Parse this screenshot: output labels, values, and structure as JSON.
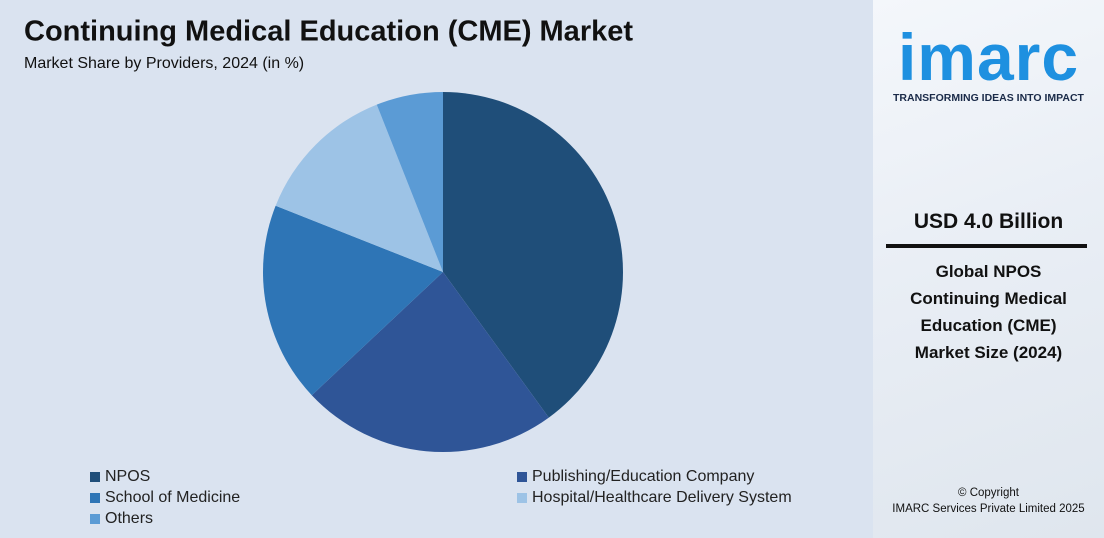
{
  "chart_data": {
    "type": "pie",
    "title": "Continuing Medical Education (CME) Market",
    "subtitle": "Market Share by Providers, 2024 (in %)",
    "categories": [
      "NPOS",
      "Publishing/Education Company",
      "School of Medicine",
      "Hospital/Healthcare Delivery System",
      "Others"
    ],
    "values": [
      40,
      23,
      18,
      13,
      6
    ],
    "colors": [
      "#1f4e79",
      "#2f5597",
      "#2e75b6",
      "#9dc3e6",
      "#5b9bd5"
    ]
  },
  "sidebar": {
    "logo": "imarc",
    "tagline": "TRANSFORMING IDEAS INTO IMPACT",
    "headline": "USD 4.0 Billion",
    "description": "Global NPOS Continuing Medical Education (CME) Market Size (2024)",
    "copyright": "© Copyright",
    "company": "IMARC Services Private Limited 2025"
  }
}
